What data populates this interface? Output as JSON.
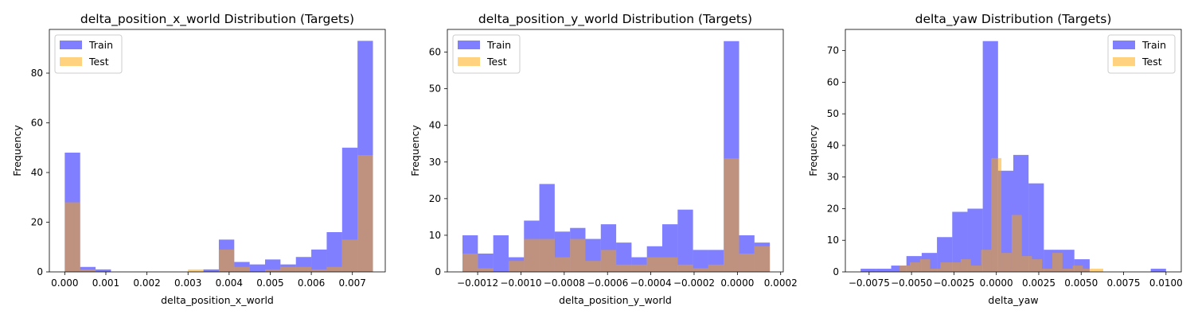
{
  "colors": {
    "train": "#0000ff",
    "test": "#ffa500",
    "bar_alpha": 0.5
  },
  "chart_data": [
    {
      "type": "bar",
      "title": "delta_position_x_world Distribution (Targets)",
      "xlabel": "delta_position_x_world",
      "ylabel": "Frequency",
      "xlim": [
        -0.000375,
        0.0078
      ],
      "ylim": [
        0,
        97.6
      ],
      "xticks": [
        0.0,
        0.001,
        0.002,
        0.003,
        0.004,
        0.005,
        0.006,
        0.007
      ],
      "xtick_labels": [
        "0.000",
        "0.001",
        "0.002",
        "0.003",
        "0.004",
        "0.005",
        "0.006",
        "0.007"
      ],
      "yticks": [
        0,
        20,
        40,
        60,
        80
      ],
      "ytick_labels": [
        "0",
        "20",
        "40",
        "60",
        "80"
      ],
      "legend": {
        "placement": "upper-left",
        "entries": [
          "Train",
          "Test"
        ]
      },
      "series": [
        {
          "name": "Train",
          "bin_edges": [
            0,
            0.000375,
            0.00075,
            0.001125,
            0.0015,
            0.001875,
            0.00225,
            0.002625,
            0.003,
            0.003375,
            0.00375,
            0.004125,
            0.0045,
            0.004875,
            0.00525,
            0.005625,
            0.006,
            0.006375,
            0.00675,
            0.007125,
            0.0075
          ],
          "values": [
            48,
            2,
            1,
            0,
            0,
            0,
            0,
            0,
            0,
            1,
            13,
            4,
            3,
            5,
            3,
            6,
            9,
            16,
            50,
            93
          ]
        },
        {
          "name": "Test",
          "bin_edges": [
            0,
            0.000375,
            0.00075,
            0.001125,
            0.0015,
            0.001875,
            0.00225,
            0.002625,
            0.003,
            0.003375,
            0.00375,
            0.004125,
            0.0045,
            0.004875,
            0.00525,
            0.005625,
            0.006,
            0.006375,
            0.00675,
            0.007125,
            0.0075
          ],
          "values": [
            28,
            1,
            0,
            0,
            0,
            0,
            0,
            0,
            1,
            0,
            9,
            2,
            0,
            1,
            2,
            2,
            1,
            2,
            13,
            47
          ]
        }
      ]
    },
    {
      "type": "bar",
      "title": "delta_position_y_world Distribution (Targets)",
      "xlabel": "delta_position_y_world",
      "ylabel": "Frequency",
      "xlim": [
        -0.00134,
        0.000212
      ],
      "ylim": [
        0,
        66.2
      ],
      "xticks": [
        -0.0012,
        -0.001,
        -0.0008,
        -0.0006,
        -0.0004,
        -0.0002,
        0.0,
        0.0002
      ],
      "xtick_labels": [
        "−0.0012",
        "−0.0010",
        "−0.0008",
        "−0.0006",
        "−0.0004",
        "−0.0002",
        "0.0000",
        "0.0002"
      ],
      "yticks": [
        0,
        10,
        20,
        30,
        40,
        50,
        60
      ],
      "ytick_labels": [
        "0",
        "10",
        "20",
        "30",
        "40",
        "50",
        "60"
      ],
      "legend": {
        "placement": "upper-left",
        "entries": [
          "Train",
          "Test"
        ]
      },
      "series": [
        {
          "name": "Train",
          "bin_edges": [
            -0.00127,
            -0.001199,
            -0.001128,
            -0.001057,
            -0.000986,
            -0.000915,
            -0.000844,
            -0.000773,
            -0.000702,
            -0.000631,
            -0.00056,
            -0.000489,
            -0.000418,
            -0.000347,
            -0.000276,
            -0.000205,
            -0.000134,
            -6.3e-05,
            8e-06,
            7.9e-05,
            0.00015
          ],
          "values": [
            10,
            5,
            10,
            4,
            14,
            24,
            11,
            12,
            9,
            13,
            8,
            4,
            7,
            13,
            17,
            6,
            6,
            63,
            10,
            8
          ]
        },
        {
          "name": "Test",
          "bin_edges": [
            -0.00127,
            -0.001199,
            -0.001128,
            -0.001057,
            -0.000986,
            -0.000915,
            -0.000844,
            -0.000773,
            -0.000702,
            -0.000631,
            -0.00056,
            -0.000489,
            -0.000418,
            -0.000347,
            -0.000276,
            -0.000205,
            -0.000134,
            -6.3e-05,
            8e-06,
            7.9e-05,
            0.00015
          ],
          "values": [
            5,
            1,
            0,
            3,
            9,
            9,
            4,
            9,
            3,
            6,
            2,
            2,
            4,
            4,
            2,
            1,
            2,
            31,
            5,
            7
          ]
        }
      ]
    },
    {
      "type": "bar",
      "title": "delta_yaw Distribution (Targets)",
      "xlabel": "delta_yaw",
      "ylabel": "Frequency",
      "xlim": [
        -0.0089,
        0.0109
      ],
      "ylim": [
        0,
        76.7
      ],
      "xticks": [
        -0.0075,
        -0.005,
        -0.0025,
        0.0,
        0.0025,
        0.005,
        0.0075,
        0.01
      ],
      "xtick_labels": [
        "−0.0075",
        "−0.0050",
        "−0.0025",
        "0.0000",
        "0.0025",
        "0.0050",
        "0.0075",
        "0.0100"
      ],
      "yticks": [
        0,
        10,
        20,
        30,
        40,
        50,
        60,
        70
      ],
      "ytick_labels": [
        "0",
        "10",
        "20",
        "30",
        "40",
        "50",
        "60",
        "70"
      ],
      "legend": {
        "placement": "upper-right",
        "entries": [
          "Train",
          "Test"
        ]
      },
      "series": [
        {
          "name": "Train",
          "bin_edges": [
            -0.008,
            -0.0071,
            -0.0062,
            -0.0053,
            -0.0044,
            -0.0035,
            -0.0026,
            -0.0017,
            -0.0008,
            0.0001,
            0.001,
            0.0019,
            0.0028,
            0.0037,
            0.0046,
            0.0055,
            0.0064,
            0.0073,
            0.0082,
            0.0091,
            0.01
          ],
          "values": [
            1,
            1,
            2,
            5,
            6,
            11,
            19,
            20,
            73,
            32,
            37,
            28,
            7,
            7,
            4,
            0,
            0,
            0,
            0,
            1
          ]
        },
        {
          "name": "Test",
          "bin_edges": [
            -0.0057,
            -0.0051,
            -0.0045,
            -0.0039,
            -0.0033,
            -0.0027,
            -0.0021,
            -0.0015,
            -0.0009,
            -0.0003,
            0.0003,
            0.0009,
            0.0015,
            0.0021,
            0.0027,
            0.0033,
            0.0039,
            0.0045,
            0.0051,
            0.0057,
            0.0063
          ],
          "values": [
            2,
            3,
            4,
            1,
            3,
            3,
            4,
            2,
            7,
            36,
            6,
            18,
            5,
            4,
            1,
            6,
            1,
            2,
            1,
            1
          ]
        }
      ]
    }
  ]
}
